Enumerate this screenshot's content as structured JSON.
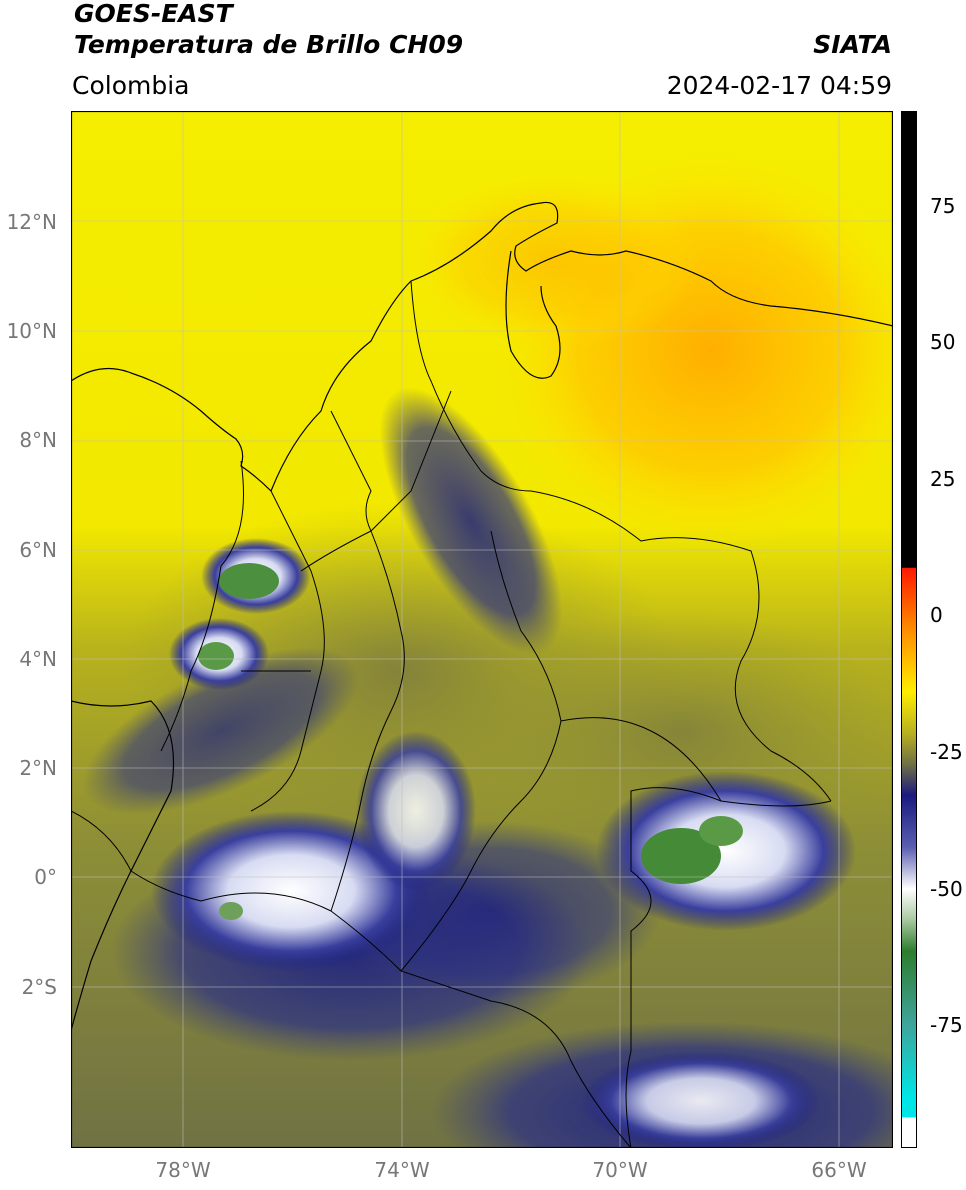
{
  "header": {
    "satellite": "GOES-EAST",
    "product": "Temperatura de Brillo CH09",
    "region": "Colombia",
    "agency": "SIATA",
    "datetime": "2024-02-17 04:59"
  },
  "axes": {
    "lat_ticks": [
      "12°N",
      "10°N",
      "8°N",
      "6°N",
      "4°N",
      "2°N",
      "0°",
      "2°S"
    ],
    "lon_ticks": [
      "78°W",
      "74°W",
      "70°W",
      "66°W"
    ]
  },
  "colorbar": {
    "ticks": [
      "75",
      "50",
      "25",
      "0",
      "-25",
      "-50",
      "-75"
    ],
    "colors": {
      "black": "#000000",
      "red": "#ff1a00",
      "orange": "#ff8c00",
      "yellow": "#ffee00",
      "olive": "#8f8f2a",
      "navy": "#1a1a80",
      "white": "#ffffff",
      "green": "#2e7d2e",
      "teal": "#3fa49a",
      "cyan": "#00e5e5"
    }
  },
  "colors": {
    "yellow": "#f5ee00",
    "orange": "#ffb000",
    "olive": "#8a8c3a",
    "navy": "#1a1e80",
    "cloud_white": "#ffffff",
    "green": "#3f8f3a"
  }
}
